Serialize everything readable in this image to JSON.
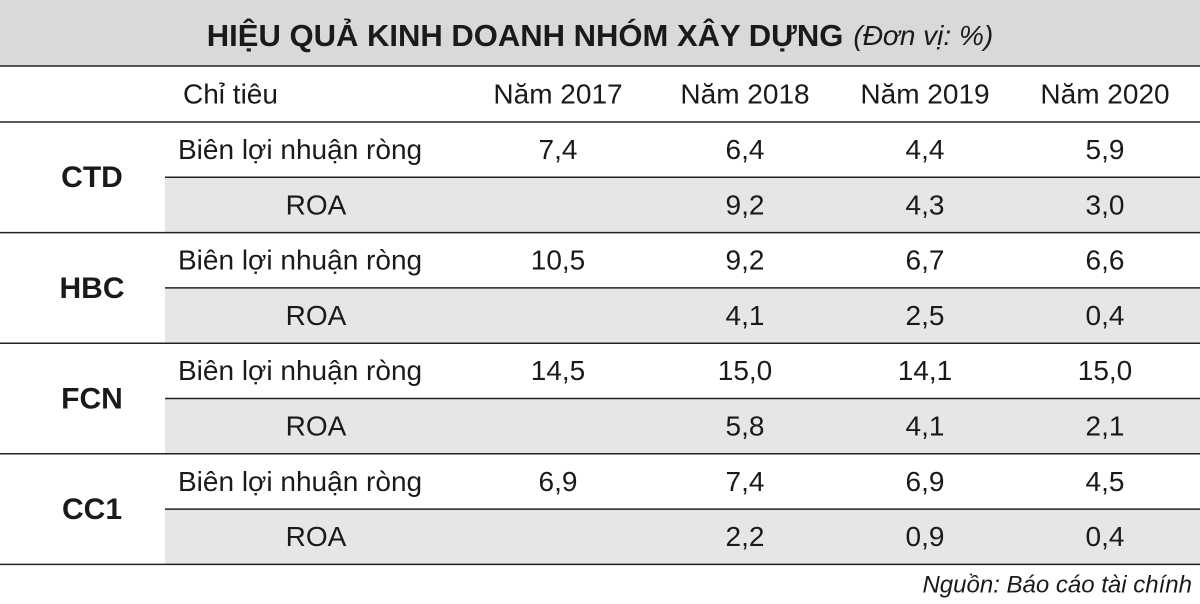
{
  "header": {
    "title": "HIỆU QUẢ KINH DOANH NHÓM XÂY DỰNG",
    "unit": "(Đơn vị: %)"
  },
  "table": {
    "columns": [
      "Chỉ tiêu",
      "Năm 2017",
      "Năm 2018",
      "Năm 2019",
      "Năm 2020"
    ],
    "groups": [
      {
        "name": "CTD",
        "rows": [
          {
            "label": "Biên lợi nhuận ròng",
            "values": [
              "7,4",
              "6,4",
              "4,4",
              "5,9"
            ]
          },
          {
            "label": "ROA",
            "values": [
              null,
              "9,2",
              "4,3",
              "3,0"
            ]
          }
        ]
      },
      {
        "name": "HBC",
        "rows": [
          {
            "label": "Biên lợi nhuận ròng",
            "values": [
              "10,5",
              "9,2",
              "6,7",
              "6,6"
            ]
          },
          {
            "label": "ROA",
            "values": [
              null,
              "4,1",
              "2,5",
              "0,4"
            ]
          }
        ]
      },
      {
        "name": "FCN",
        "rows": [
          {
            "label": "Biên lợi nhuận ròng",
            "values": [
              "14,5",
              "15,0",
              "14,1",
              "15,0"
            ]
          },
          {
            "label": "ROA",
            "values": [
              null,
              "5,8",
              "4,1",
              "2,1"
            ]
          }
        ]
      },
      {
        "name": "CC1",
        "rows": [
          {
            "label": "Biên lợi nhuận ròng",
            "values": [
              "6,9",
              "7,4",
              "6,9",
              "4,5"
            ]
          },
          {
            "label": "ROA",
            "values": [
              null,
              "2,2",
              "0,9",
              "0,4"
            ]
          }
        ]
      }
    ]
  },
  "source": "Nguồn: Báo cáo tài chính"
}
